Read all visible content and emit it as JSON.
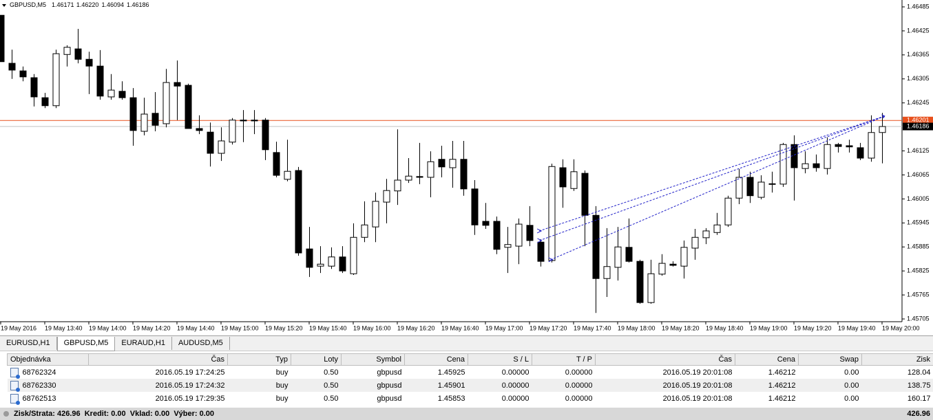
{
  "header": {
    "symbol": "GBPUSD,M5",
    "ohlc": [
      "1.46171",
      "1.46220",
      "1.46094",
      "1.46186"
    ]
  },
  "chart_data": {
    "type": "candlestick",
    "opens": [
      1.46464,
      1.46344,
      1.46325,
      1.46308,
      1.46258,
      1.46238,
      1.46366,
      1.4638,
      1.46354,
      1.46337,
      1.4626,
      1.46274,
      1.46258,
      1.46174,
      1.46219,
      1.46193,
      1.46296,
      1.46289,
      1.46181,
      1.46172,
      1.46119,
      1.46147,
      1.46202,
      1.46202,
      1.46202,
      1.46121,
      1.46054,
      1.46076,
      1.4588,
      1.45837,
      1.45837,
      1.4586,
      1.45818,
      1.45909,
      1.45935,
      1.45997,
      1.46025,
      1.46052,
      1.46061,
      1.46059,
      1.46104,
      1.46083,
      1.46104,
      1.4603,
      1.45949,
      1.45949,
      1.45884,
      1.45887,
      1.45939,
      1.45897,
      1.45851,
      1.46083,
      1.46031,
      1.46069,
      1.45964,
      1.45806,
      1.45834,
      1.45884,
      1.45849,
      1.45746,
      1.45817,
      1.45842,
      1.45837,
      1.45882,
      1.45908,
      1.45921,
      1.4594,
      1.46007,
      1.46059,
      1.46009,
      1.46043,
      1.46042,
      1.46141,
      1.46081,
      1.46093,
      1.46081,
      1.46141,
      1.46138,
      1.46133,
      1.46107,
      1.46171
    ],
    "highs": [
      1.46464,
      1.46378,
      1.46336,
      1.46317,
      1.4627,
      1.46378,
      1.46389,
      1.4643,
      1.46373,
      1.46377,
      1.46317,
      1.46299,
      1.46282,
      1.46258,
      1.46272,
      1.4633,
      1.46351,
      1.46293,
      1.46214,
      1.46196,
      1.46184,
      1.46207,
      1.46227,
      1.46227,
      1.46207,
      1.46148,
      1.46153,
      1.46085,
      1.45935,
      1.45887,
      1.45884,
      1.45887,
      1.45944,
      1.45999,
      1.46021,
      1.46055,
      1.46179,
      1.46107,
      1.46145,
      1.46124,
      1.46138,
      1.4615,
      1.4615,
      1.46052,
      1.45995,
      1.45961,
      1.45935,
      1.45956,
      1.45987,
      1.45904,
      1.46093,
      1.46104,
      1.46104,
      1.46076,
      1.45987,
      1.45932,
      1.45935,
      1.45956,
      1.45853,
      1.45853,
      1.45867,
      1.45849,
      1.45901,
      1.4593,
      1.45932,
      1.4597,
      1.46013,
      1.4608,
      1.46073,
      1.46064,
      1.46073,
      1.46145,
      1.46164,
      1.46124,
      1.46116,
      1.46159,
      1.46145,
      1.46153,
      1.46145,
      1.46214,
      1.4622
    ],
    "lows": [
      1.46348,
      1.46305,
      1.46299,
      1.46236,
      1.46232,
      1.46232,
      1.46336,
      1.46344,
      1.46267,
      1.46253,
      1.46253,
      1.46253,
      1.46138,
      1.46164,
      1.46174,
      1.46184,
      1.46202,
      1.46181,
      1.46167,
      1.46086,
      1.461,
      1.46141,
      1.46147,
      1.46167,
      1.46102,
      1.46059,
      1.46049,
      1.45863,
      1.4581,
      1.4582,
      1.4583,
      1.4582,
      1.45815,
      1.45897,
      1.45897,
      1.45944,
      1.4599,
      1.46045,
      1.46042,
      1.46009,
      1.46059,
      1.46033,
      1.46013,
      1.45915,
      1.4593,
      1.45867,
      1.4582,
      1.45842,
      1.45887,
      1.45836,
      1.45846,
      1.45983,
      1.46025,
      1.45887,
      1.4572,
      1.4576,
      1.45801,
      1.45846,
      1.45743,
      1.45743,
      1.45813,
      1.45836,
      1.45806,
      1.45853,
      1.45892,
      1.45915,
      1.45935,
      1.45992,
      1.45995,
      1.46004,
      1.46021,
      1.46035,
      1.46001,
      1.46069,
      1.46073,
      1.46066,
      1.46121,
      1.46121,
      1.46102,
      1.46098,
      1.46094
    ],
    "closes": [
      1.46348,
      1.46327,
      1.4631,
      1.4626,
      1.46238,
      1.46368,
      1.46384,
      1.46354,
      1.46337,
      1.46262,
      1.46277,
      1.46258,
      1.46176,
      1.46217,
      1.46189,
      1.46296,
      1.46287,
      1.46181,
      1.46176,
      1.46119,
      1.4615,
      1.46202,
      1.462,
      1.462,
      1.46128,
      1.46064,
      1.46074,
      1.4587,
      1.45834,
      1.45842,
      1.4586,
      1.45825,
      1.45909,
      1.4594,
      1.45999,
      1.46026,
      1.46052,
      1.46062,
      1.46059,
      1.46098,
      1.46085,
      1.46104,
      1.4603,
      1.4594,
      1.45939,
      1.45879,
      1.45891,
      1.45942,
      1.45901,
      1.45849,
      1.46086,
      1.46035,
      1.46073,
      1.45964,
      1.45806,
      1.45836,
      1.45885,
      1.45849,
      1.45746,
      1.45818,
      1.45844,
      1.45839,
      1.45884,
      1.45909,
      1.45925,
      1.4594,
      1.46007,
      1.46059,
      1.46013,
      1.46047,
      1.46042,
      1.46141,
      1.46083,
      1.46093,
      1.46083,
      1.46141,
      1.46136,
      1.46135,
      1.46107,
      1.46171,
      1.46186
    ],
    "x_labels": [
      "19 May 2016",
      "19 May 13:40",
      "19 May 14:00",
      "19 May 14:20",
      "19 May 14:40",
      "19 May 15:00",
      "19 May 15:20",
      "19 May 15:40",
      "19 May 16:00",
      "19 May 16:20",
      "19 May 16:40",
      "19 May 17:00",
      "19 May 17:20",
      "19 May 17:40",
      "19 May 18:00",
      "19 May 18:20",
      "19 May 18:40",
      "19 May 19:00",
      "19 May 19:20",
      "19 May 19:40",
      "19 May 20:00"
    ],
    "ylim": [
      1.45705,
      1.46485
    ],
    "yticks": [
      1.46485,
      1.46425,
      1.46365,
      1.46305,
      1.46245,
      1.46125,
      1.46065,
      1.46005,
      1.45945,
      1.45885,
      1.45825,
      1.45765,
      1.45705
    ],
    "price_lines": [
      {
        "value": 1.46201,
        "color": "#e8501c"
      },
      {
        "value": 1.46186,
        "color": "#000000"
      }
    ],
    "up_color": "#ffffff",
    "down_color": "#000000",
    "trade_line_color": "#1f1fc8"
  },
  "tabs": [
    "EURUSD,H1",
    "GBPUSD,M5",
    "EURAUD,H1",
    "AUDUSD,M5"
  ],
  "active_tab": 1,
  "table": {
    "headers": [
      "Objednávka",
      "Čas",
      "Typ",
      "Loty",
      "Symbol",
      "Cena",
      "S / L",
      "T / P",
      "Čas",
      "Cena",
      "Swap",
      "Zisk"
    ],
    "rows": [
      [
        "68762324",
        "2016.05.19 17:24:25",
        "buy",
        "0.50",
        "gbpusd",
        "1.45925",
        "0.00000",
        "0.00000",
        "2016.05.19 20:01:08",
        "1.46212",
        "0.00",
        "128.04"
      ],
      [
        "68762330",
        "2016.05.19 17:24:32",
        "buy",
        "0.50",
        "gbpusd",
        "1.45901",
        "0.00000",
        "0.00000",
        "2016.05.19 20:01:08",
        "1.46212",
        "0.00",
        "138.75"
      ],
      [
        "68762513",
        "2016.05.19 17:29:35",
        "buy",
        "0.50",
        "gbpusd",
        "1.45853",
        "0.00000",
        "0.00000",
        "2016.05.19 20:01:08",
        "1.46212",
        "0.00",
        "160.17"
      ]
    ]
  },
  "footer": {
    "summary": "Zisk/Strata: 426.96  Kredit: 0.00  Vklad: 0.00  Výber: 0.00",
    "total": "426.96"
  }
}
